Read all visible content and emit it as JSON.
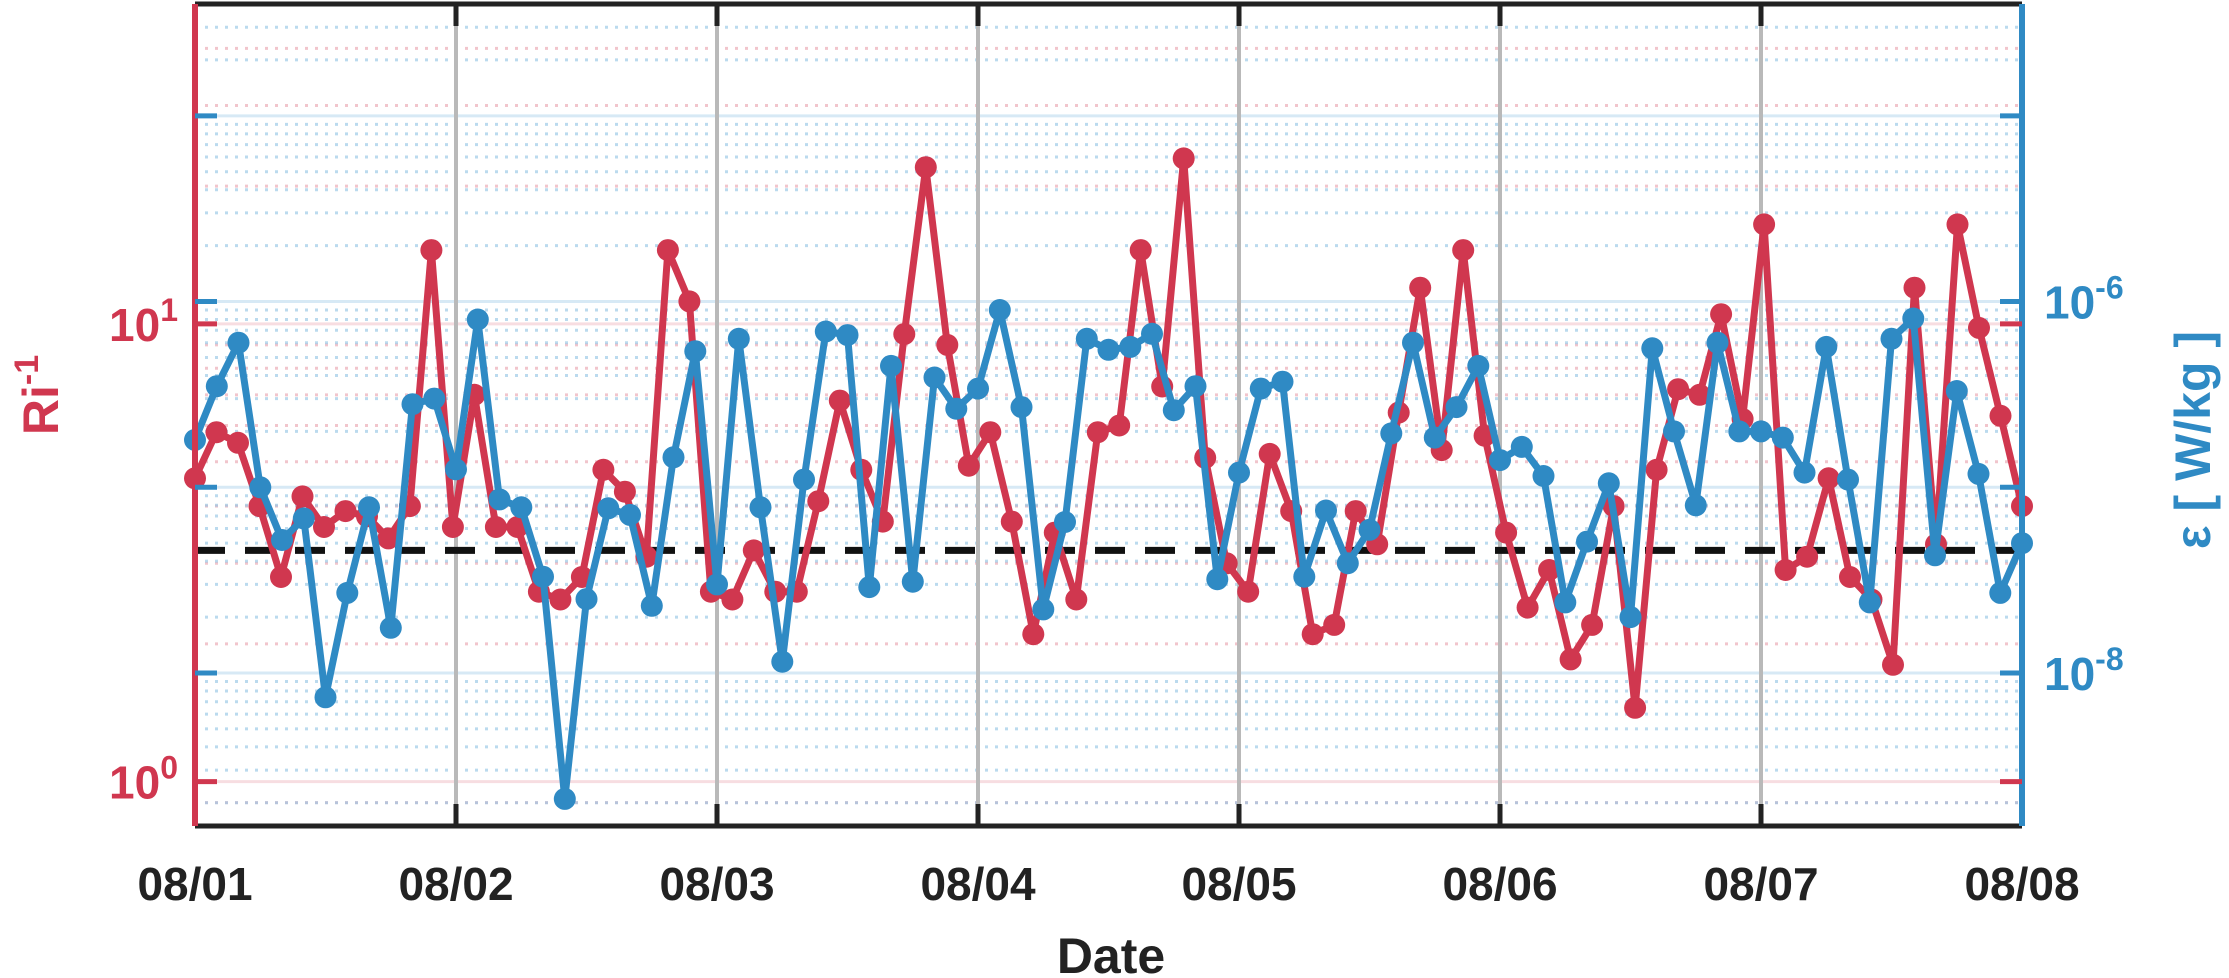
{
  "chart_data": {
    "type": "line",
    "xlabel": "Date",
    "x_ticks": [
      "08/01",
      "08/02",
      "08/03",
      "08/04",
      "08/05",
      "08/06",
      "08/07",
      "08/08"
    ],
    "xlim": [
      "08/01",
      "08/08"
    ],
    "left_axis": {
      "label_base": "Ri",
      "label_sup": "-1",
      "scale": "log",
      "ylim": [
        0.8,
        50
      ],
      "ticks": [
        {
          "base": "10",
          "exp": "0"
        },
        {
          "base": "10",
          "exp": "1"
        }
      ]
    },
    "right_axis": {
      "label": "ε [ W/kg ]",
      "scale": "log",
      "ylim": [
        1.5e-09,
        4e-05
      ],
      "ticks": [
        {
          "base": "10",
          "exp": "-8"
        },
        {
          "base": "10",
          "exp": "-6"
        }
      ]
    },
    "reference_line": {
      "value": 3.2,
      "style": "dashed",
      "color": "#111111"
    },
    "series": [
      {
        "name": "",
        "axis": "left",
        "color": "#d0374f",
        "values": [
          4.6,
          5.8,
          5.5,
          4.0,
          2.8,
          4.2,
          3.6,
          3.9,
          3.8,
          3.4,
          4.0,
          14.5,
          3.6,
          7.0,
          3.6,
          3.6,
          2.6,
          2.5,
          2.8,
          4.8,
          4.3,
          3.1,
          14.5,
          11.2,
          2.6,
          2.5,
          3.2,
          2.6,
          2.6,
          4.1,
          6.8,
          4.8,
          3.7,
          9.5,
          22.0,
          9.0,
          4.9,
          5.8,
          3.7,
          2.1,
          3.5,
          2.5,
          5.8,
          6.0,
          14.5,
          7.3,
          23.0,
          5.1,
          3.0,
          2.6,
          5.2,
          3.9,
          2.1,
          2.2,
          3.9,
          3.3,
          6.4,
          12.0,
          5.3,
          14.5,
          5.7,
          3.5,
          2.4,
          2.9,
          1.85,
          2.2,
          4.0,
          1.45,
          4.8,
          7.2,
          7.0,
          10.5,
          6.2,
          16.5,
          2.9,
          3.1,
          4.6,
          2.8,
          2.5,
          1.8,
          12.0,
          3.3,
          16.5,
          9.8,
          6.3,
          4.0
        ]
      },
      {
        "name": "",
        "axis": "right",
        "color": "#2f8ac4",
        "values": [
          1.8e-07,
          3.5e-07,
          6e-07,
          1e-07,
          5.2e-08,
          6.8e-08,
          7.4e-09,
          2.7e-08,
          7.8e-08,
          1.75e-08,
          2.8e-07,
          3e-07,
          1.25e-07,
          8e-07,
          8.6e-08,
          7.8e-08,
          3.3e-08,
          2.1e-09,
          2.5e-08,
          7.7e-08,
          7.1e-08,
          2.3e-08,
          1.45e-07,
          5.4e-07,
          3e-08,
          6.3e-07,
          7.8e-08,
          1.15e-08,
          1.1e-07,
          6.9e-07,
          6.6e-07,
          2.9e-08,
          4.5e-07,
          3.1e-08,
          3.9e-07,
          2.65e-07,
          3.4e-07,
          9e-07,
          2.7e-07,
          2.2e-08,
          6.5e-08,
          6.3e-07,
          5.5e-07,
          5.7e-07,
          6.7e-07,
          2.6e-07,
          3.5e-07,
          3.2e-08,
          1.2e-07,
          3.4e-07,
          3.7e-07,
          3.3e-08,
          7.5e-08,
          3.9e-08,
          5.9e-08,
          1.95e-07,
          6e-07,
          1.85e-07,
          2.7e-07,
          4.5e-07,
          1.4e-07,
          1.65e-07,
          1.15e-07,
          2.4e-08,
          5.1e-08,
          1.05e-07,
          2e-08,
          5.6e-07,
          2e-07,
          8e-08,
          6e-07,
          2e-07,
          2e-07,
          1.85e-07,
          1.2e-07,
          5.7e-07,
          1.1e-07,
          2.4e-08,
          6.3e-07,
          8.1e-07,
          4.3e-08,
          3.3e-07,
          1.18e-07,
          2.7e-08,
          5e-08
        ]
      }
    ],
    "grid": {
      "x_major": true,
      "y_minor": true
    }
  }
}
